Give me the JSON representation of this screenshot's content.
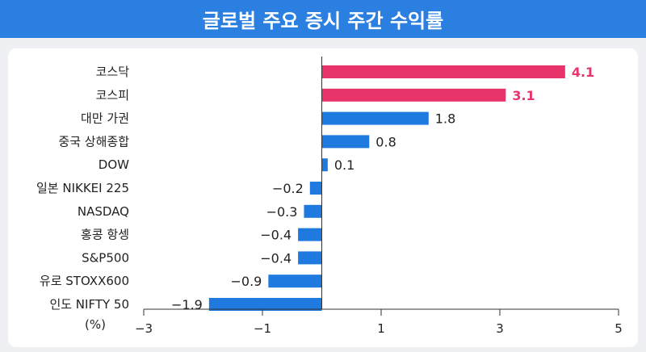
{
  "title": "글로벌 주요 증시 주간 수익률",
  "colors": {
    "banner": "#2b7fe0",
    "positive_highlight": "#e8346a",
    "default_bar": "#1f7ae0",
    "axis": "#333333",
    "text": "#222222",
    "background": "#eef0f3",
    "panel": "#ffffff"
  },
  "chart_data": {
    "type": "bar",
    "orientation": "horizontal",
    "categories": [
      "코스닥",
      "코스피",
      "대만 가권",
      "중국 상해종합",
      "DOW",
      "일본 NIKKEI 225",
      "NASDAQ",
      "홍콩 항셍",
      "S&P500",
      "유로 STOXX600",
      "인도 NIFTY 50"
    ],
    "values": [
      4.1,
      3.1,
      1.8,
      0.8,
      0.1,
      -0.2,
      -0.3,
      -0.4,
      -0.4,
      -0.9,
      -1.9
    ],
    "value_labels": [
      "4.1",
      "3.1",
      "1.8",
      "0.8",
      "0.1",
      "−0.2",
      "−0.3",
      "−0.4",
      "−0.4",
      "−0.9",
      "−1.9"
    ],
    "highlighted": [
      true,
      true,
      false,
      false,
      false,
      false,
      false,
      false,
      false,
      false,
      false
    ],
    "xlabel": "(%)",
    "xlim": [
      -3,
      5
    ],
    "xticks": [
      -3,
      -1,
      1,
      3,
      5
    ],
    "xtick_labels": [
      "−3",
      "−1",
      "1",
      "3",
      "5"
    ],
    "grid": false
  }
}
